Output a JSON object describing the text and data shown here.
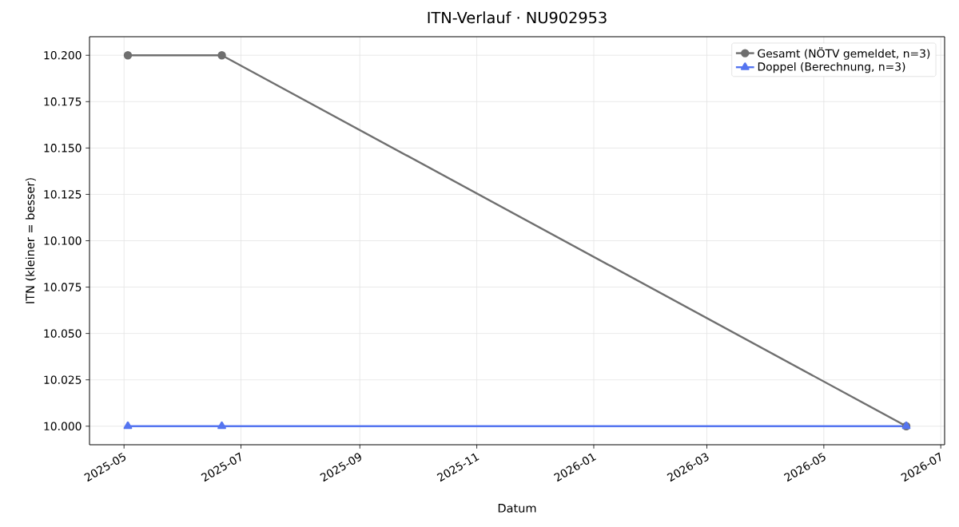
{
  "chart_data": {
    "type": "line",
    "title": "ITN-Verlauf · NU902953",
    "xlabel": "Datum",
    "ylabel": "ITN (kleiner = besser)",
    "x": [
      "2025-05-03",
      "2025-06-21",
      "2026-06-13"
    ],
    "series": [
      {
        "name": "Gesamt (NÖTV gemeldet, n=3)",
        "color": "#6f6f6f",
        "marker": "circle",
        "values": [
          10.2,
          10.2,
          10.0
        ]
      },
      {
        "name": "Doppel (Berechnung, n=3)",
        "color": "#5575f0",
        "marker": "triangle",
        "values": [
          10.0,
          10.0,
          10.0
        ]
      }
    ],
    "xlim": [
      "2025-04-13",
      "2026-07-03"
    ],
    "ylim": [
      9.99,
      10.21
    ],
    "xticks": [
      "2025-05",
      "2025-07",
      "2025-09",
      "2025-11",
      "2026-01",
      "2026-03",
      "2026-05",
      "2026-07"
    ],
    "yticks": [
      {
        "value": 10.0,
        "label": "10.000"
      },
      {
        "value": 10.025,
        "label": "10.025"
      },
      {
        "value": 10.05,
        "label": "10.050"
      },
      {
        "value": 10.075,
        "label": "10.075"
      },
      {
        "value": 10.1,
        "label": "10.100"
      },
      {
        "value": 10.125,
        "label": "10.125"
      },
      {
        "value": 10.15,
        "label": "10.150"
      },
      {
        "value": 10.175,
        "label": "10.175"
      },
      {
        "value": 10.2,
        "label": "10.200"
      }
    ],
    "grid": true,
    "legend": "top right"
  }
}
